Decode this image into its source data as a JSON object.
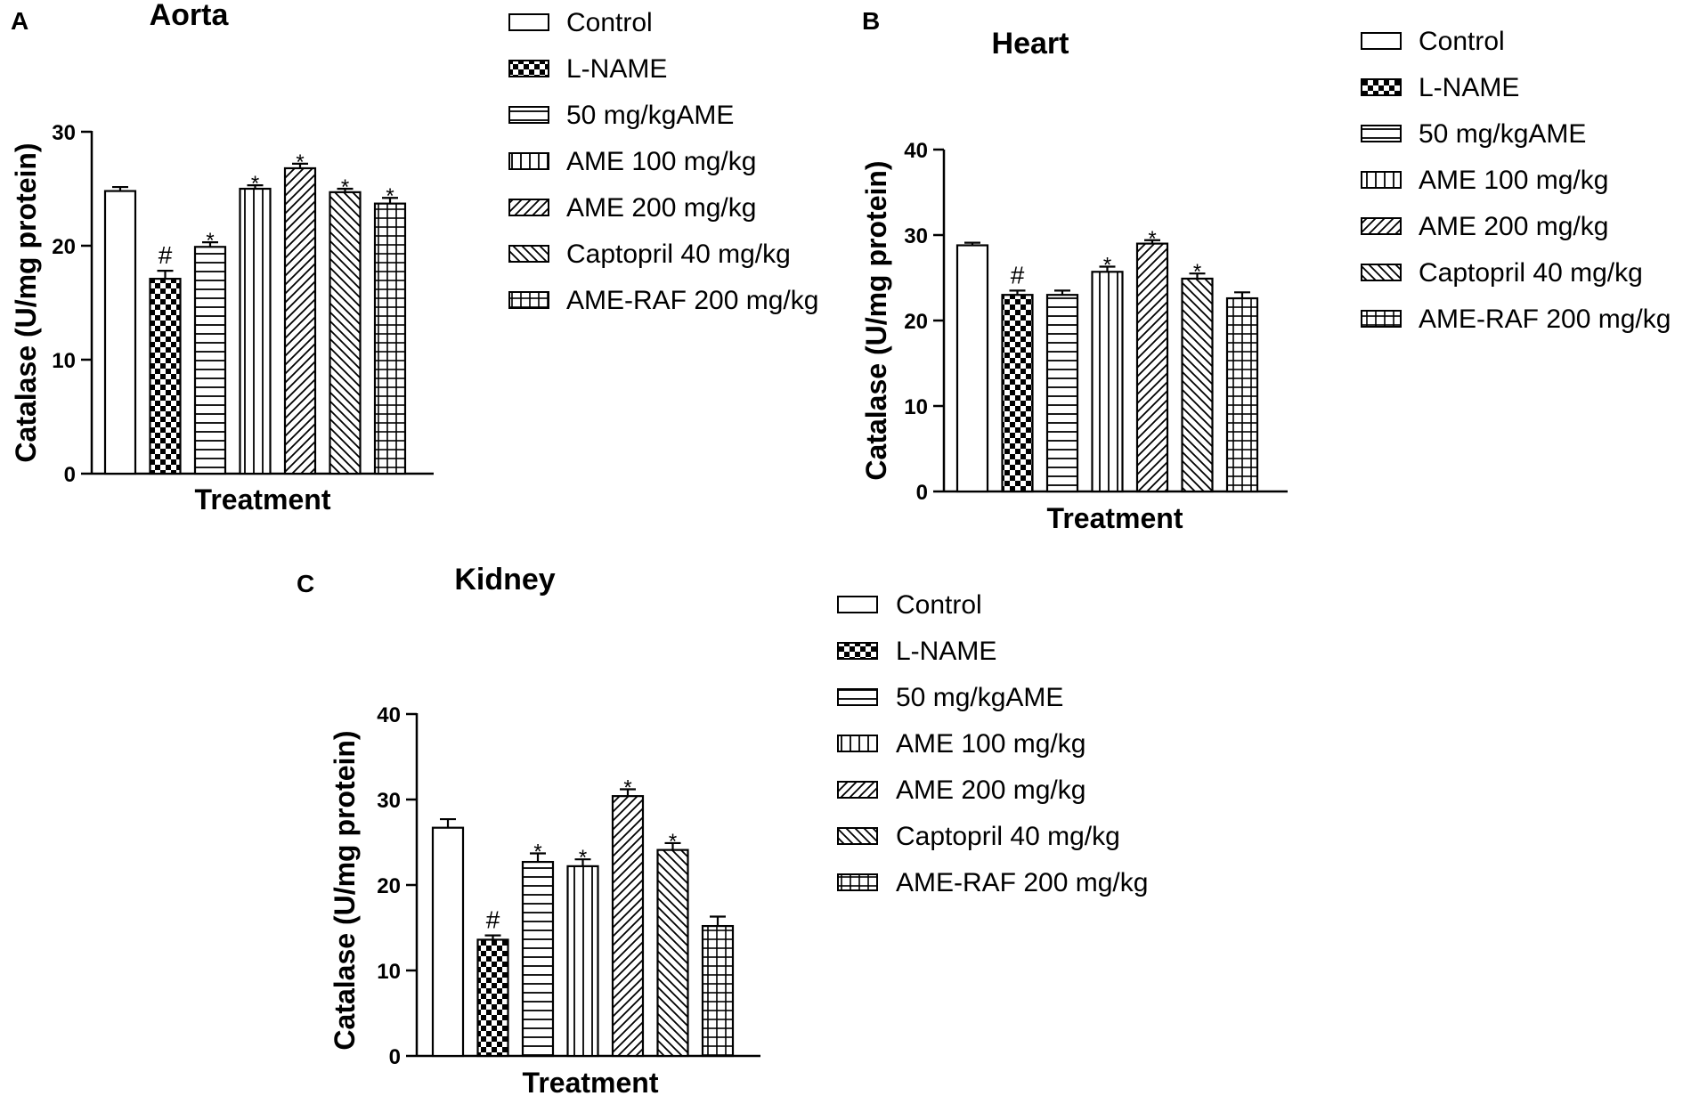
{
  "colors": {
    "ink": "#000000",
    "background": "#ffffff"
  },
  "legend_entries": [
    {
      "label": "Control",
      "pattern": "none"
    },
    {
      "label": "L-NAME",
      "pattern": "checker"
    },
    {
      "label": "50 mg/kgAME",
      "pattern": "hlines"
    },
    {
      "label": "AME 100 mg/kg",
      "pattern": "vlines"
    },
    {
      "label": "AME 200 mg/kg",
      "pattern": "diag-up"
    },
    {
      "label": "Captopril 40 mg/kg",
      "pattern": "diag-down"
    },
    {
      "label": "AME-RAF 200 mg/kg",
      "pattern": "grid"
    }
  ],
  "chart_data": [
    {
      "panel": "A",
      "type": "bar",
      "title": "Aorta",
      "xlabel": "Treatment",
      "ylabel": "Catalase (U/mg protein)",
      "ylim": [
        0,
        30
      ],
      "yticks": [
        "0",
        "10",
        "20",
        "30"
      ],
      "categories": [
        "Control",
        "L-NAME",
        "50 mg/kgAME",
        "AME 100 mg/kg",
        "AME 200 mg/kg",
        "Captopril 40 mg/kg",
        "AME-RAF 200 mg/kg"
      ],
      "values": [
        24.8,
        17.1,
        19.9,
        25.0,
        26.8,
        24.7,
        23.7
      ],
      "errors": [
        0.35,
        0.7,
        0.4,
        0.3,
        0.4,
        0.3,
        0.5
      ],
      "significance": [
        "",
        "#",
        "*",
        "*",
        "*",
        "*",
        "*"
      ]
    },
    {
      "panel": "B",
      "type": "bar",
      "title": "Heart",
      "xlabel": "Treatment",
      "ylabel": "Catalase (U/mg protein)",
      "ylim": [
        0,
        40
      ],
      "yticks": [
        "0",
        "10",
        "20",
        "30",
        "40"
      ],
      "categories": [
        "Control",
        "L-NAME",
        "50 mg/kgAME",
        "AME 100 mg/kg",
        "AME 200 mg/kg",
        "Captopril 40 mg/kg",
        "AME-RAF 200 mg/kg"
      ],
      "values": [
        28.8,
        23.0,
        23.0,
        25.7,
        29.0,
        24.9,
        22.6
      ],
      "errors": [
        0.3,
        0.5,
        0.5,
        0.6,
        0.4,
        0.6,
        0.7
      ],
      "significance": [
        "",
        "#",
        "",
        "*",
        "*",
        "*",
        ""
      ]
    },
    {
      "panel": "C",
      "type": "bar",
      "title": "Kidney",
      "xlabel": "Treatment",
      "ylabel": "Catalase (U/mg protein)",
      "ylim": [
        0,
        40
      ],
      "yticks": [
        "0",
        "10",
        "20",
        "30",
        "40"
      ],
      "categories": [
        "Control",
        "L-NAME",
        "50 mg/kgAME",
        "AME 100 mg/kg",
        "AME 200 mg/kg",
        "Captopril 40 mg/kg",
        "AME-RAF 200 mg/kg"
      ],
      "values": [
        26.7,
        13.6,
        22.7,
        22.2,
        30.4,
        24.1,
        15.2
      ],
      "errors": [
        1.0,
        0.5,
        1.0,
        0.8,
        0.8,
        0.8,
        1.1
      ],
      "significance": [
        "",
        "#",
        "*",
        "*",
        "*",
        "*",
        ""
      ]
    }
  ]
}
